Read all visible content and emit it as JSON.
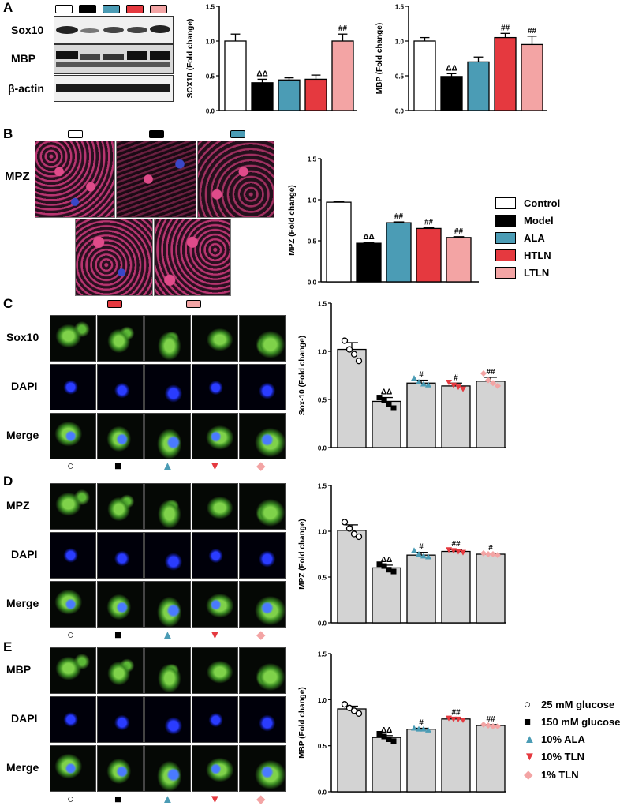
{
  "panel_labels": [
    "A",
    "B",
    "C",
    "D",
    "E"
  ],
  "blot_labels": [
    "Sox10",
    "MBP",
    "β-actin"
  ],
  "group_colors": [
    "#ffffff",
    "#000000",
    "#4b9cb5",
    "#e5393f",
    "#f3a4a4"
  ],
  "b_group_colors": [
    "#ffffff",
    "#000000",
    "#4b9cb5",
    "#e5393f",
    "#f3a4a4"
  ],
  "b_image_label": "MPZ",
  "legend_b": [
    "Control",
    "Model",
    "ALA",
    "HTLN",
    "LTLN"
  ],
  "legend_cde": [
    {
      "symbol": "○",
      "label": "25 mM glucose",
      "color": "#000000"
    },
    {
      "symbol": "■",
      "label": "150 mM glucose",
      "color": "#000000"
    },
    {
      "symbol": "▲",
      "label": "10% ALA",
      "color": "#4b9cb5"
    },
    {
      "symbol": "▼",
      "label": "10% TLN",
      "color": "#e5393f"
    },
    {
      "symbol": "◆",
      "label": "1% TLN",
      "color": "#f3a4a4"
    }
  ],
  "row_labels": {
    "C": [
      "Sox10",
      "DAPI",
      "Merge"
    ],
    "D": [
      "MPZ",
      "DAPI",
      "Merge"
    ],
    "E": [
      "MBP",
      "DAPI",
      "Merge"
    ]
  },
  "row_symbols": [
    {
      "symbol": "○",
      "color": "#000000"
    },
    {
      "symbol": "■",
      "color": "#000000"
    },
    {
      "symbol": "▲",
      "color": "#4b9cb5"
    },
    {
      "symbol": "▼",
      "color": "#e5393f"
    },
    {
      "symbol": "◆",
      "color": "#f3a4a4"
    }
  ],
  "chart_data": [
    {
      "id": "sox10",
      "type": "bar",
      "ylabel": "SOX10 (Fold change)",
      "ylim": [
        0,
        1.5
      ],
      "yticks": [
        "0.0",
        "0.5",
        "1.0",
        "1.5"
      ],
      "values": [
        1.0,
        0.4,
        0.44,
        0.45,
        1.0
      ],
      "errors": [
        0.1,
        0.05,
        0.03,
        0.06,
        0.1
      ],
      "annotations": [
        "",
        "ΔΔ",
        "",
        "",
        "##"
      ],
      "colors": [
        "#ffffff",
        "#000000",
        "#4b9cb5",
        "#e5393f",
        "#f3a4a4"
      ]
    },
    {
      "id": "mbp_a",
      "type": "bar",
      "ylabel": "MBP (Fold change)",
      "ylim": [
        0,
        1.5
      ],
      "yticks": [
        "0.0",
        "0.5",
        "1.0",
        "1.5"
      ],
      "values": [
        1.0,
        0.49,
        0.7,
        1.05,
        0.95
      ],
      "errors": [
        0.05,
        0.04,
        0.07,
        0.06,
        0.12
      ],
      "annotations": [
        "",
        "ΔΔ",
        "",
        "##",
        "##"
      ],
      "colors": [
        "#ffffff",
        "#000000",
        "#4b9cb5",
        "#e5393f",
        "#f3a4a4"
      ]
    },
    {
      "id": "mpz_b",
      "type": "bar",
      "ylabel": "MPZ (Fold change)",
      "ylim": [
        0,
        1.5
      ],
      "yticks": [
        "0.0",
        "0.5",
        "1.0",
        "1.5"
      ],
      "values": [
        0.97,
        0.47,
        0.72,
        0.65,
        0.54
      ],
      "errors": [
        0.01,
        0.01,
        0.01,
        0.01,
        0.01
      ],
      "annotations": [
        "",
        "ΔΔ",
        "##",
        "##",
        "##"
      ],
      "colors": [
        "#ffffff",
        "#000000",
        "#4b9cb5",
        "#e5393f",
        "#f3a4a4"
      ]
    },
    {
      "id": "sox10_c",
      "type": "bar",
      "ylabel": "Sox-10 (Fold change)",
      "ylim": [
        0,
        1.5
      ],
      "yticks": [
        "0.0",
        "0.5",
        "1.0",
        "1.5"
      ],
      "values": [
        1.02,
        0.48,
        0.67,
        0.64,
        0.69
      ],
      "errors": [
        0.07,
        0.04,
        0.03,
        0.03,
        0.04
      ],
      "annotations": [
        "",
        "ΔΔ",
        "#",
        "#",
        "##"
      ],
      "points": [
        [
          1.11,
          1.02,
          0.97,
          0.9
        ],
        [
          0.52,
          0.49,
          0.45,
          0.41
        ],
        [
          0.72,
          0.68,
          0.66,
          0.65
        ],
        [
          0.68,
          0.65,
          0.63,
          0.61
        ],
        [
          0.77,
          0.7,
          0.67,
          0.64
        ]
      ],
      "colors": [
        "#d3d3d3",
        "#d3d3d3",
        "#d3d3d3",
        "#d3d3d3",
        "#d3d3d3"
      ]
    },
    {
      "id": "mpz_d",
      "type": "bar",
      "ylabel": "MPZ (Fold change)",
      "ylim": [
        0,
        1.5
      ],
      "yticks": [
        "0.0",
        "0.5",
        "1.0",
        "1.5"
      ],
      "values": [
        1.01,
        0.6,
        0.74,
        0.78,
        0.75
      ],
      "errors": [
        0.06,
        0.03,
        0.03,
        0.02,
        0.01
      ],
      "annotations": [
        "",
        "ΔΔ",
        "#",
        "##",
        "#"
      ],
      "points": [
        [
          1.1,
          1.03,
          0.97,
          0.94
        ],
        [
          0.64,
          0.62,
          0.58,
          0.56
        ],
        [
          0.79,
          0.75,
          0.73,
          0.72
        ],
        [
          0.8,
          0.79,
          0.78,
          0.77
        ],
        [
          0.76,
          0.75,
          0.75,
          0.74
        ]
      ],
      "colors": [
        "#d3d3d3",
        "#d3d3d3",
        "#d3d3d3",
        "#d3d3d3",
        "#d3d3d3"
      ]
    },
    {
      "id": "mbp_e",
      "type": "bar",
      "ylabel": "MBP (Fold change)",
      "ylim": [
        0,
        1.5
      ],
      "yticks": [
        "0.0",
        "0.5",
        "1.0",
        "1.5"
      ],
      "values": [
        0.9,
        0.59,
        0.68,
        0.79,
        0.72
      ],
      "errors": [
        0.03,
        0.02,
        0.01,
        0.01,
        0.01
      ],
      "annotations": [
        "",
        "ΔΔ",
        "#",
        "##",
        "##"
      ],
      "points": [
        [
          0.95,
          0.91,
          0.88,
          0.85
        ],
        [
          0.63,
          0.6,
          0.57,
          0.55
        ],
        [
          0.69,
          0.68,
          0.68,
          0.67
        ],
        [
          0.8,
          0.79,
          0.79,
          0.78
        ],
        [
          0.73,
          0.72,
          0.71,
          0.71
        ]
      ],
      "colors": [
        "#d3d3d3",
        "#d3d3d3",
        "#d3d3d3",
        "#d3d3d3",
        "#d3d3d3"
      ]
    }
  ]
}
